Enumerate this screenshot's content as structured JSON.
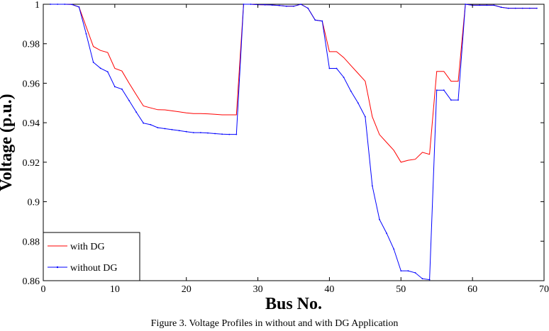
{
  "caption": "Figure 3. Voltage Profiles in without and with DG Application",
  "chart_data": {
    "type": "line",
    "xlabel": "Bus No.",
    "ylabel": "Voltage (p.u.)",
    "xlim": [
      0,
      70
    ],
    "ylim": [
      0.86,
      1.0
    ],
    "xticks": [
      0,
      10,
      20,
      30,
      40,
      50,
      60,
      70
    ],
    "yticks": [
      0.86,
      0.88,
      0.9,
      0.92,
      0.94,
      0.96,
      0.98,
      1
    ],
    "grid": false,
    "legend_position": "bottom-left",
    "x": [
      1,
      2,
      3,
      4,
      5,
      6,
      7,
      8,
      9,
      10,
      11,
      12,
      13,
      14,
      15,
      16,
      17,
      18,
      19,
      20,
      21,
      22,
      23,
      24,
      25,
      26,
      27,
      28,
      29,
      30,
      31,
      32,
      33,
      34,
      35,
      36,
      37,
      38,
      39,
      40,
      41,
      42,
      43,
      44,
      45,
      46,
      47,
      48,
      49,
      50,
      51,
      52,
      53,
      54,
      55,
      56,
      57,
      58,
      59,
      60,
      61,
      62,
      63,
      64,
      65,
      66,
      67,
      68,
      69
    ],
    "series": [
      {
        "name": "with DG",
        "color": "#ff0000",
        "marker": "none",
        "values": [
          1.0,
          1.0,
          1.0,
          0.9999,
          0.9986,
          0.9886,
          0.9786,
          0.9766,
          0.9756,
          0.9675,
          0.9662,
          0.96,
          0.9542,
          0.9485,
          0.9475,
          0.9466,
          0.9465,
          0.946,
          0.9455,
          0.945,
          0.9446,
          0.9446,
          0.9445,
          0.9443,
          0.944,
          0.944,
          0.944,
          1.0,
          1.0,
          0.9998,
          0.9997,
          0.9996,
          0.9994,
          0.999,
          0.999,
          1.0,
          0.998,
          0.992,
          0.9915,
          0.976,
          0.976,
          0.973,
          0.969,
          0.965,
          0.961,
          0.943,
          0.934,
          0.93,
          0.926,
          0.92,
          0.921,
          0.9215,
          0.925,
          0.924,
          0.966,
          0.966,
          0.961,
          0.961,
          1.0,
          0.9995,
          0.9995,
          0.9995,
          0.9995,
          0.9985,
          0.998,
          0.998,
          0.998,
          0.998,
          0.998
        ]
      },
      {
        "name": "without DG",
        "color": "#0000ff",
        "marker": "dot",
        "values": [
          1.0,
          1.0,
          1.0,
          0.9999,
          0.9986,
          0.985,
          0.9706,
          0.9676,
          0.9658,
          0.9582,
          0.957,
          0.9512,
          0.9454,
          0.9398,
          0.939,
          0.9375,
          0.937,
          0.9365,
          0.936,
          0.9355,
          0.935,
          0.935,
          0.9348,
          0.9345,
          0.9342,
          0.9341,
          0.9341,
          1.0,
          1.0,
          0.9998,
          0.9997,
          0.9996,
          0.9994,
          0.999,
          0.999,
          1.0,
          0.998,
          0.992,
          0.9915,
          0.9675,
          0.9675,
          0.963,
          0.956,
          0.95,
          0.943,
          0.908,
          0.891,
          0.884,
          0.876,
          0.865,
          0.865,
          0.864,
          0.861,
          0.8605,
          0.9565,
          0.9565,
          0.9515,
          0.9515,
          1.0,
          0.9995,
          0.9995,
          0.9995,
          0.9995,
          0.9985,
          0.998,
          0.998,
          0.998,
          0.998,
          0.998
        ]
      }
    ]
  }
}
